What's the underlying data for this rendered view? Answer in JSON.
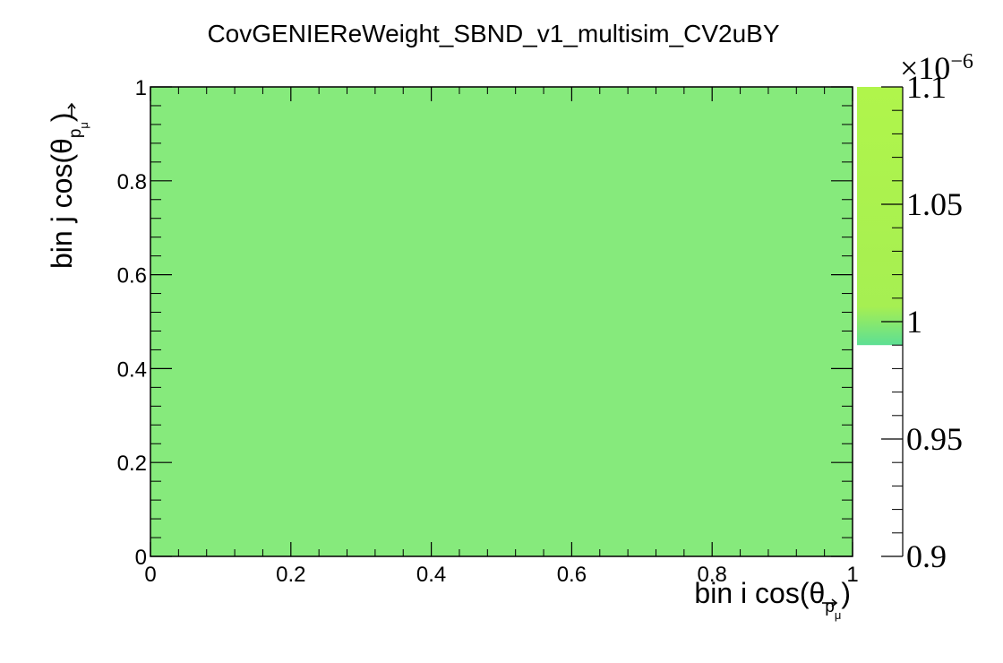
{
  "chart_data": {
    "type": "heatmap",
    "title": "CovGENIEReWeight_SBND_v1_multisim_CV2uBY",
    "xlabel": "bin i cos(θ",
    "xlabel_sub": "p",
    "xlabel_subsub": "μ",
    "xlabel_close": ")",
    "ylabel": "bin j cos(θ",
    "ylabel_sub": "p",
    "ylabel_subsub": "μ",
    "ylabel_close": ")",
    "xlim": [
      0,
      1
    ],
    "ylim": [
      0,
      1
    ],
    "x_ticks": [
      {
        "value": 0,
        "label": "0"
      },
      {
        "value": 0.2,
        "label": "0.2"
      },
      {
        "value": 0.4,
        "label": "0.4"
      },
      {
        "value": 0.6,
        "label": "0.6"
      },
      {
        "value": 0.8,
        "label": "0.8"
      },
      {
        "value": 1,
        "label": "1"
      }
    ],
    "y_ticks": [
      {
        "value": 0,
        "label": "0"
      },
      {
        "value": 0.2,
        "label": "0.2"
      },
      {
        "value": 0.4,
        "label": "0.4"
      },
      {
        "value": 0.6,
        "label": "0.6"
      },
      {
        "value": 0.8,
        "label": "0.8"
      },
      {
        "value": 1,
        "label": "1"
      }
    ],
    "cells": [
      {
        "x": [
          0,
          1
        ],
        "y": [
          0,
          1
        ],
        "value": 0.999
      }
    ],
    "fill_color": "#86ea7c",
    "colorbar": {
      "range": [
        0.9,
        1.1
      ],
      "exponent": "×10",
      "exponent_power": "−6",
      "ticks": [
        {
          "value": 0.9,
          "label": "0.9"
        },
        {
          "value": 0.95,
          "label": "0.95"
        },
        {
          "value": 1.0,
          "label": "1"
        },
        {
          "value": 1.05,
          "label": "1.05"
        },
        {
          "value": 1.1,
          "label": "1.1"
        }
      ],
      "filled_from": 0.99,
      "color_low": "#5ddf94",
      "color_mid": "#a6ef52",
      "color_high": "#b0f54b"
    },
    "grid": false,
    "legend": "none"
  }
}
